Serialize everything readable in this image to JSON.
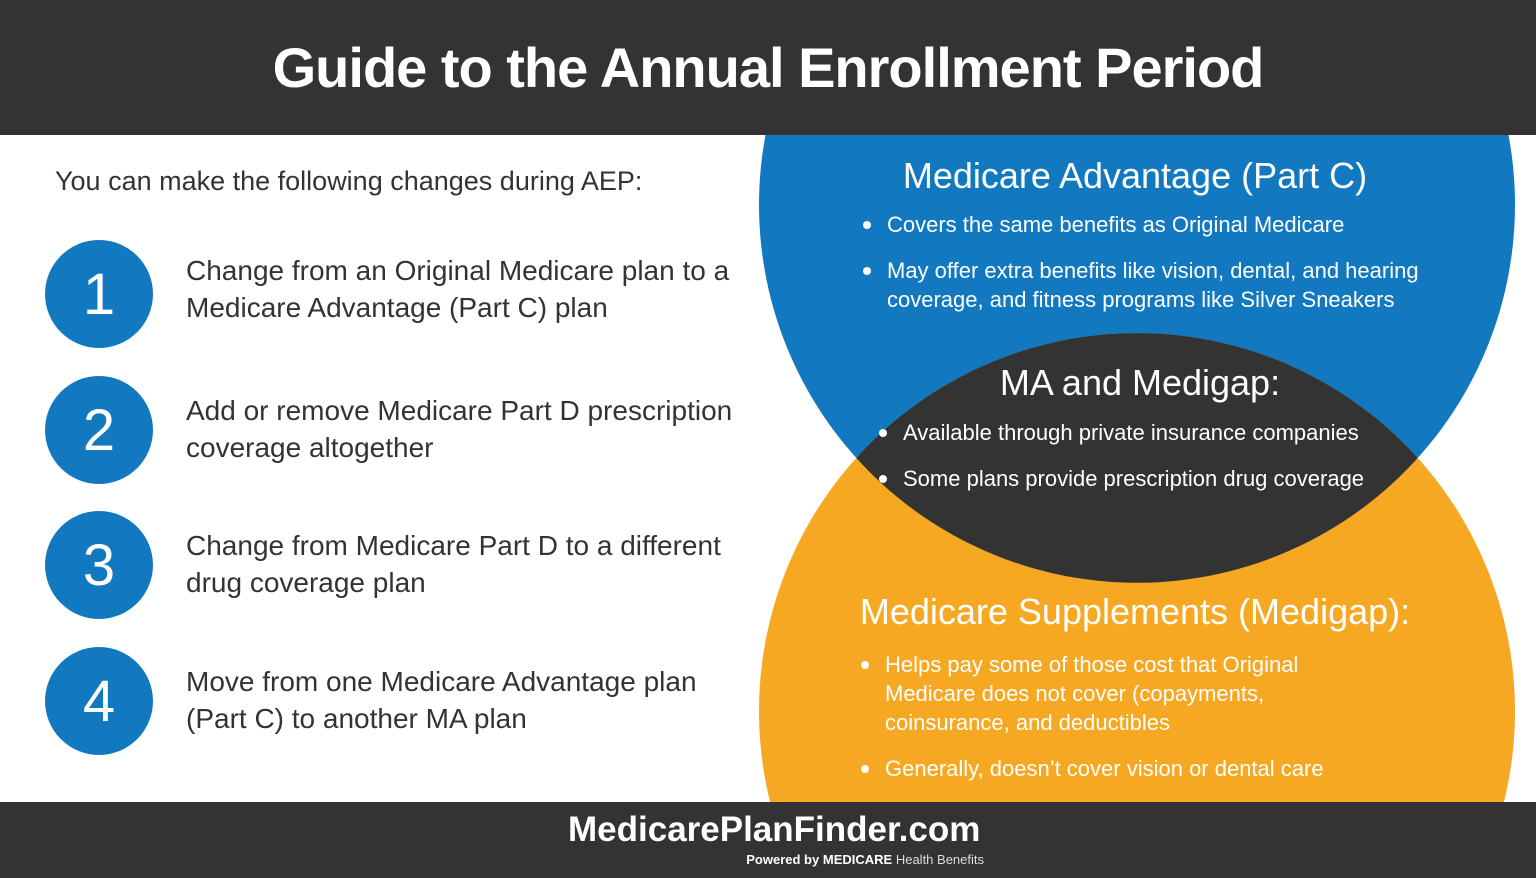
{
  "title": "Guide to the Annual Enrollment Period",
  "intro": "You can make the following changes during AEP:",
  "steps": [
    {
      "number": "1",
      "text": "Change from an Original Medicare plan to a Medicare Advantage (Part C) plan"
    },
    {
      "number": "2",
      "text": "Add or remove Medicare Part D prescription coverage altogether"
    },
    {
      "number": "3",
      "text": "Change from Medicare Part D to a different drug coverage plan"
    },
    {
      "number": "4",
      "text": "Move from one Medicare Advantage plan (Part C) to another MA plan"
    }
  ],
  "venn": {
    "advantage": {
      "heading": "Medicare Advantage (Part C)",
      "bullets": [
        "Covers the same benefits as Original Medicare",
        "May offer extra benefits like vision, dental, and hearing coverage, and fitness programs like Silver Sneakers"
      ]
    },
    "overlap": {
      "heading": "MA and Medigap:",
      "bullets": [
        "Available through private insurance companies",
        "Some plans provide prescription drug coverage"
      ]
    },
    "medigap": {
      "heading": "Medicare Supplements (Medigap):",
      "bullets": [
        "Helps pay some of those cost that Original Medicare does not cover (copayments, coinsurance, and deductibles",
        "Generally, doesn’t cover vision or dental care"
      ]
    }
  },
  "footer": {
    "logo": "MedicarePlanFinder.com",
    "powered_prefix": "Powered by",
    "powered_brand": "MEDICARE",
    "powered_suffix": "Health Benefits"
  },
  "colors": {
    "header": "#333333",
    "blue": "#1278c0",
    "orange": "#f6a823",
    "overlap": "#333333"
  }
}
